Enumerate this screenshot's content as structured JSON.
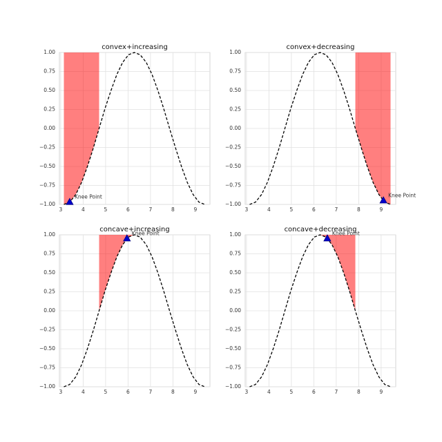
{
  "chart_data": [
    {
      "type": "line",
      "title": "convex+increasing",
      "color": "#000000",
      "fill_color": "#ff0000",
      "marker_color": "#0000cc",
      "grid": true,
      "x": [
        3.14,
        3.4,
        3.67,
        3.93,
        4.19,
        4.45,
        4.71,
        4.97,
        5.24,
        5.5,
        5.76,
        6.02,
        6.28,
        6.54,
        6.81,
        7.07,
        7.33,
        7.59,
        7.85,
        8.12,
        8.38,
        8.64,
        8.9,
        9.16,
        9.42
      ],
      "values": [
        -1,
        -0.97,
        -0.87,
        -0.71,
        -0.5,
        -0.26,
        0,
        0.26,
        0.5,
        0.71,
        0.87,
        0.97,
        1,
        0.97,
        0.87,
        0.71,
        0.5,
        0.26,
        0,
        -0.26,
        -0.5,
        -0.71,
        -0.87,
        -0.97,
        -1
      ],
      "fill_x": [
        3.14,
        4.71
      ],
      "knee": {
        "text": "Knee Point",
        "x": 3.4,
        "y": -0.97
      },
      "xlim": [
        2.94,
        9.65
      ],
      "ylim": [
        -1,
        1
      ],
      "xticks": [
        3,
        4,
        5,
        6,
        7,
        8,
        9
      ],
      "yticks": [
        {
          "value": -1,
          "label": "−1.00"
        },
        {
          "value": -0.75,
          "label": "−0.75"
        },
        {
          "value": -0.5,
          "label": "−0.50"
        },
        {
          "value": -0.25,
          "label": "−0.25"
        },
        {
          "value": 0,
          "label": "0.00"
        },
        {
          "value": 0.25,
          "label": "0.25"
        },
        {
          "value": 0.5,
          "label": "0.50"
        },
        {
          "value": 0.75,
          "label": "0.75"
        },
        {
          "value": 1,
          "label": "1.00"
        }
      ]
    },
    {
      "type": "line",
      "title": "convex+decreasing",
      "color": "#000000",
      "fill_color": "#ff0000",
      "marker_color": "#0000cc",
      "grid": true,
      "x": [
        3.14,
        3.4,
        3.67,
        3.93,
        4.19,
        4.45,
        4.71,
        4.97,
        5.24,
        5.5,
        5.76,
        6.02,
        6.28,
        6.54,
        6.81,
        7.07,
        7.33,
        7.59,
        7.85,
        8.12,
        8.38,
        8.64,
        8.9,
        9.16,
        9.42
      ],
      "values": [
        -1,
        -0.97,
        -0.87,
        -0.71,
        -0.5,
        -0.26,
        0,
        0.26,
        0.5,
        0.71,
        0.87,
        0.97,
        1,
        0.97,
        0.87,
        0.71,
        0.5,
        0.26,
        0,
        -0.26,
        -0.5,
        -0.71,
        -0.87,
        -0.97,
        -1
      ],
      "fill_x": [
        7.85,
        9.42
      ],
      "knee": {
        "text": "Knee Point",
        "x": 9.1,
        "y": -0.95
      },
      "xlim": [
        2.94,
        9.65
      ],
      "ylim": [
        -1,
        1
      ],
      "xticks": [
        3,
        4,
        5,
        6,
        7,
        8,
        9
      ],
      "yticks": [
        {
          "value": -1,
          "label": "−1.00"
        },
        {
          "value": -0.75,
          "label": "−0.75"
        },
        {
          "value": -0.5,
          "label": "−0.50"
        },
        {
          "value": -0.25,
          "label": "−0.25"
        },
        {
          "value": 0,
          "label": "0.00"
        },
        {
          "value": 0.25,
          "label": "0.25"
        },
        {
          "value": 0.5,
          "label": "0.50"
        },
        {
          "value": 0.75,
          "label": "0.75"
        },
        {
          "value": 1,
          "label": "1.00"
        }
      ]
    },
    {
      "type": "line",
      "title": "concave+increasing",
      "color": "#000000",
      "fill_color": "#ff0000",
      "marker_color": "#0000cc",
      "grid": true,
      "x": [
        3.14,
        3.4,
        3.67,
        3.93,
        4.19,
        4.45,
        4.71,
        4.97,
        5.24,
        5.5,
        5.76,
        6.02,
        6.28,
        6.54,
        6.81,
        7.07,
        7.33,
        7.59,
        7.85,
        8.12,
        8.38,
        8.64,
        8.9,
        9.16,
        9.42
      ],
      "values": [
        -1,
        -0.97,
        -0.87,
        -0.71,
        -0.5,
        -0.26,
        0,
        0.26,
        0.5,
        0.71,
        0.87,
        0.97,
        1,
        0.97,
        0.87,
        0.71,
        0.5,
        0.26,
        0,
        -0.26,
        -0.5,
        -0.71,
        -0.87,
        -0.97,
        -1
      ],
      "fill_x": [
        4.71,
        6.28
      ],
      "knee": {
        "text": "Knee Point",
        "x": 5.95,
        "y": 0.95
      },
      "xlim": [
        2.94,
        9.65
      ],
      "ylim": [
        -1,
        1
      ],
      "xticks": [
        3,
        4,
        5,
        6,
        7,
        8,
        9
      ],
      "yticks": [
        {
          "value": -1,
          "label": "−1.00"
        },
        {
          "value": -0.75,
          "label": "−0.75"
        },
        {
          "value": -0.5,
          "label": "−0.50"
        },
        {
          "value": -0.25,
          "label": "−0.25"
        },
        {
          "value": 0,
          "label": "0.00"
        },
        {
          "value": 0.25,
          "label": "0.25"
        },
        {
          "value": 0.5,
          "label": "0.50"
        },
        {
          "value": 0.75,
          "label": "0.75"
        },
        {
          "value": 1,
          "label": "1.00"
        }
      ]
    },
    {
      "type": "line",
      "title": "concave+decreasing",
      "color": "#000000",
      "fill_color": "#ff0000",
      "marker_color": "#0000cc",
      "grid": true,
      "x": [
        3.14,
        3.4,
        3.67,
        3.93,
        4.19,
        4.45,
        4.71,
        4.97,
        5.24,
        5.5,
        5.76,
        6.02,
        6.28,
        6.54,
        6.81,
        7.07,
        7.33,
        7.59,
        7.85,
        8.12,
        8.38,
        8.64,
        8.9,
        9.16,
        9.42
      ],
      "values": [
        -1,
        -0.97,
        -0.87,
        -0.71,
        -0.5,
        -0.26,
        0,
        0.26,
        0.5,
        0.71,
        0.87,
        0.97,
        1,
        0.97,
        0.87,
        0.71,
        0.5,
        0.26,
        0,
        -0.26,
        -0.5,
        -0.71,
        -0.87,
        -0.97,
        -1
      ],
      "fill_x": [
        6.28,
        7.85
      ],
      "knee": {
        "text": "Knee Point",
        "x": 6.6,
        "y": 0.95
      },
      "xlim": [
        2.94,
        9.65
      ],
      "ylim": [
        -1,
        1
      ],
      "xticks": [
        3,
        4,
        5,
        6,
        7,
        8,
        9
      ],
      "yticks": [
        {
          "value": -1,
          "label": "−1.00"
        },
        {
          "value": -0.75,
          "label": "−0.75"
        },
        {
          "value": -0.5,
          "label": "−0.50"
        },
        {
          "value": -0.25,
          "label": "−0.25"
        },
        {
          "value": 0,
          "label": "0.00"
        },
        {
          "value": 0.25,
          "label": "0.25"
        },
        {
          "value": 0.5,
          "label": "0.50"
        },
        {
          "value": 0.75,
          "label": "0.75"
        },
        {
          "value": 1,
          "label": "1.00"
        }
      ]
    }
  ]
}
